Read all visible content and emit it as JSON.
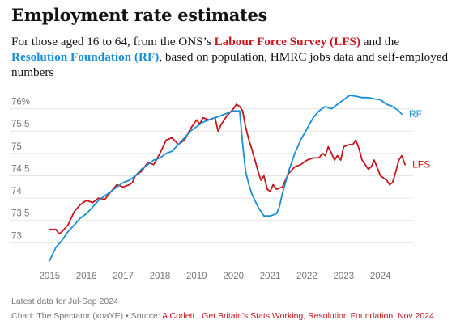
{
  "header": {
    "title": "Employment rate estimates",
    "subtitle_pre": "For those aged 16 to 64, from the ONS’s ",
    "subtitle_lfs": "Labour Force Survey (LFS)",
    "subtitle_mid": " and the ",
    "subtitle_rf": "Resolution Foundation (RF)",
    "subtitle_post": ", based on population, HMRC jobs data and self-employed numbers"
  },
  "footer": {
    "note": "Latest data for Jul-Sep 2024",
    "credit_prefix": "Chart: The Spectator (xoaYE) • Source: ",
    "credit_source": "A Corlett , Get Britain’s Stats Working, Resolution Foundation, Nov 2024"
  },
  "colors": {
    "lfs": "#c4161c",
    "rf": "#1a8ed6",
    "grid": "#e5e5e5",
    "text": "#121212",
    "muted": "#777777"
  },
  "chart_data": {
    "type": "line",
    "title": "Employment rate estimates",
    "xlabel": "",
    "ylabel": "",
    "xlim": [
      2014.75,
      2024.8
    ],
    "ylim": [
      72.5,
      76.3
    ],
    "y_ticks": [
      {
        "value": 73,
        "label": "73"
      },
      {
        "value": 73.5,
        "label": "73.5"
      },
      {
        "value": 74,
        "label": "74"
      },
      {
        "value": 74.5,
        "label": "74.5"
      },
      {
        "value": 75,
        "label": "75"
      },
      {
        "value": 75.5,
        "label": "75.5"
      },
      {
        "value": 76,
        "label": "76%"
      }
    ],
    "x_ticks": [
      {
        "value": 2015,
        "label": "2015"
      },
      {
        "value": 2016,
        "label": "2016"
      },
      {
        "value": 2017,
        "label": "2017"
      },
      {
        "value": 2018,
        "label": "2018"
      },
      {
        "value": 2019,
        "label": "2019"
      },
      {
        "value": 2020,
        "label": "2020"
      },
      {
        "value": 2021,
        "label": "2021"
      },
      {
        "value": 2022,
        "label": "2022"
      },
      {
        "value": 2023,
        "label": "2023"
      },
      {
        "value": 2024,
        "label": "2024"
      }
    ],
    "grid": "horizontal",
    "legend": "direct labels at line ends",
    "series": [
      {
        "name": "LFS",
        "color": "#c4161c",
        "points": [
          [
            2015.0,
            73.3
          ],
          [
            2015.17,
            73.3
          ],
          [
            2015.25,
            73.2
          ],
          [
            2015.33,
            73.25
          ],
          [
            2015.5,
            73.4
          ],
          [
            2015.67,
            73.7
          ],
          [
            2015.83,
            73.85
          ],
          [
            2016.0,
            73.95
          ],
          [
            2016.17,
            73.9
          ],
          [
            2016.33,
            74.0
          ],
          [
            2016.5,
            73.97
          ],
          [
            2016.67,
            74.15
          ],
          [
            2016.83,
            74.3
          ],
          [
            2017.0,
            74.25
          ],
          [
            2017.17,
            74.3
          ],
          [
            2017.25,
            74.35
          ],
          [
            2017.33,
            74.5
          ],
          [
            2017.5,
            74.6
          ],
          [
            2017.67,
            74.8
          ],
          [
            2017.83,
            74.75
          ],
          [
            2018.0,
            75.0
          ],
          [
            2018.17,
            75.3
          ],
          [
            2018.33,
            75.35
          ],
          [
            2018.5,
            75.2
          ],
          [
            2018.67,
            75.3
          ],
          [
            2018.83,
            75.55
          ],
          [
            2019.0,
            75.75
          ],
          [
            2019.08,
            75.65
          ],
          [
            2019.17,
            75.8
          ],
          [
            2019.33,
            75.75
          ],
          [
            2019.5,
            75.8
          ],
          [
            2019.58,
            75.5
          ],
          [
            2019.67,
            75.65
          ],
          [
            2019.83,
            75.85
          ],
          [
            2020.0,
            76.0
          ],
          [
            2020.08,
            76.1
          ],
          [
            2020.17,
            76.05
          ],
          [
            2020.25,
            75.95
          ],
          [
            2020.33,
            75.6
          ],
          [
            2020.42,
            75.3
          ],
          [
            2020.5,
            75.1
          ],
          [
            2020.67,
            74.6
          ],
          [
            2020.75,
            74.4
          ],
          [
            2020.83,
            74.5
          ],
          [
            2020.92,
            74.2
          ],
          [
            2021.0,
            74.15
          ],
          [
            2021.08,
            74.3
          ],
          [
            2021.17,
            74.2
          ],
          [
            2021.33,
            74.25
          ],
          [
            2021.5,
            74.55
          ],
          [
            2021.67,
            74.7
          ],
          [
            2021.83,
            74.75
          ],
          [
            2022.0,
            74.85
          ],
          [
            2022.17,
            74.9
          ],
          [
            2022.33,
            74.9
          ],
          [
            2022.42,
            75.0
          ],
          [
            2022.5,
            74.95
          ],
          [
            2022.58,
            75.15
          ],
          [
            2022.67,
            75.0
          ],
          [
            2022.75,
            74.85
          ],
          [
            2022.83,
            74.95
          ],
          [
            2022.92,
            74.85
          ],
          [
            2023.0,
            75.15
          ],
          [
            2023.17,
            75.2
          ],
          [
            2023.25,
            75.2
          ],
          [
            2023.33,
            75.3
          ],
          [
            2023.42,
            75.1
          ],
          [
            2023.5,
            74.85
          ],
          [
            2023.67,
            74.65
          ],
          [
            2023.75,
            74.7
          ],
          [
            2023.83,
            74.85
          ],
          [
            2024.0,
            74.5
          ],
          [
            2024.17,
            74.4
          ],
          [
            2024.25,
            74.3
          ],
          [
            2024.33,
            74.35
          ],
          [
            2024.42,
            74.6
          ],
          [
            2024.5,
            74.85
          ],
          [
            2024.58,
            74.95
          ],
          [
            2024.67,
            74.75
          ]
        ]
      },
      {
        "name": "RF",
        "color": "#1a8ed6",
        "points": [
          [
            2015.0,
            72.6
          ],
          [
            2015.17,
            72.9
          ],
          [
            2015.33,
            73.05
          ],
          [
            2015.5,
            73.25
          ],
          [
            2015.67,
            73.4
          ],
          [
            2015.83,
            73.55
          ],
          [
            2016.0,
            73.65
          ],
          [
            2016.17,
            73.8
          ],
          [
            2016.33,
            73.95
          ],
          [
            2016.5,
            74.05
          ],
          [
            2016.67,
            74.15
          ],
          [
            2016.83,
            74.25
          ],
          [
            2017.0,
            74.35
          ],
          [
            2017.17,
            74.4
          ],
          [
            2017.33,
            74.5
          ],
          [
            2017.5,
            74.65
          ],
          [
            2017.67,
            74.75
          ],
          [
            2017.83,
            74.85
          ],
          [
            2018.0,
            74.9
          ],
          [
            2018.17,
            75.0
          ],
          [
            2018.33,
            75.05
          ],
          [
            2018.5,
            75.2
          ],
          [
            2018.67,
            75.35
          ],
          [
            2018.83,
            75.5
          ],
          [
            2019.0,
            75.6
          ],
          [
            2019.17,
            75.7
          ],
          [
            2019.33,
            75.75
          ],
          [
            2019.5,
            75.8
          ],
          [
            2019.67,
            75.85
          ],
          [
            2019.83,
            75.9
          ],
          [
            2020.0,
            75.95
          ],
          [
            2020.17,
            75.95
          ],
          [
            2020.25,
            75.2
          ],
          [
            2020.33,
            74.6
          ],
          [
            2020.42,
            74.3
          ],
          [
            2020.5,
            74.1
          ],
          [
            2020.67,
            73.8
          ],
          [
            2020.83,
            73.6
          ],
          [
            2021.0,
            73.6
          ],
          [
            2021.17,
            73.65
          ],
          [
            2021.25,
            73.8
          ],
          [
            2021.33,
            74.1
          ],
          [
            2021.42,
            74.35
          ],
          [
            2021.5,
            74.6
          ],
          [
            2021.67,
            75.0
          ],
          [
            2021.83,
            75.3
          ],
          [
            2022.0,
            75.55
          ],
          [
            2022.17,
            75.8
          ],
          [
            2022.33,
            75.95
          ],
          [
            2022.5,
            76.05
          ],
          [
            2022.67,
            76.0
          ],
          [
            2022.83,
            76.1
          ],
          [
            2023.0,
            76.2
          ],
          [
            2023.17,
            76.3
          ],
          [
            2023.33,
            76.28
          ],
          [
            2023.5,
            76.25
          ],
          [
            2023.67,
            76.25
          ],
          [
            2023.83,
            76.22
          ],
          [
            2024.0,
            76.2
          ],
          [
            2024.17,
            76.1
          ],
          [
            2024.33,
            76.05
          ],
          [
            2024.5,
            75.95
          ],
          [
            2024.58,
            75.88
          ]
        ]
      }
    ]
  }
}
